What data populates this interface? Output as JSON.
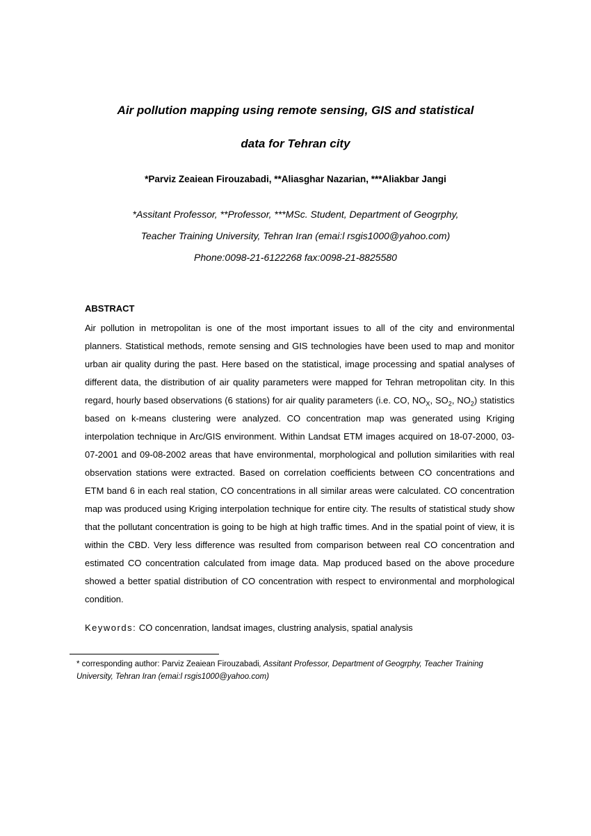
{
  "title_line1": "Air pollution mapping using remote sensing, GIS and statistical",
  "title_line2": "data for Tehran city",
  "authors": "*Parviz Zeaiean Firouzabadi, **Aliasghar Nazarian, ***Aliakbar Jangi",
  "affiliation_line1": "*Assitant Professor, **Professor, ***MSc. Student, Department of Geogrphy,",
  "affiliation_line2": "Teacher Training University, Tehran Iran (emai:l rsgis1000@yahoo.com)",
  "affiliation_line3": "Phone:0098-21-6122268  fax:0098-21-8825580",
  "abstract_heading": "ABSTRACT",
  "abstract_body": "Air pollution in metropolitan is one of the most important issues to all of the city and environmental planners. Statistical methods, remote sensing and GIS technologies have been used to map and monitor urban air quality during the past. Here based on the statistical, image processing and spatial analyses of different data, the distribution of air quality parameters were mapped for Tehran metropolitan city. In this regard, hourly based observations (6 stations) for air quality parameters (i.e. CO, NOX, SO2, NO2) statistics based on k-means clustering were analyzed.  CO concentration map was generated using Kriging interpolation technique in Arc/GIS environment.  Within Landsat ETM images acquired on 18-07-2000, 03-07-2001 and 09-08-2002 areas that have environmental, morphological and pollution similarities with real observation stations were extracted.  Based on correlation coefficients between CO concentrations and ETM band 6 in each real station, CO concentrations in all similar areas were calculated. CO concentration map was produced using Kriging interpolation technique for entire city. The results of statistical study show that the pollutant concentration is going to be high at high traffic times. And in the spatial point of view, it is within the CBD. Very less difference was resulted from comparison between real CO concentration and estimated CO concentration calculated from image data. Map produced based on the above procedure showed a better spatial distribution of CO concentration with respect to environmental and morphological condition.",
  "keywords_label": "Keywords:",
  "keywords_text": " CO concenration, landsat images, clustring analysis, spatial analysis",
  "footnote_prefix": "* corresponding author: Parviz Zeaiean Firouzabadi",
  "footnote_suffix": ", Assitant Professor, Department of Geogrphy, Teacher Training University, Tehran Iran (emai:l rsgis1000@yahoo.com)"
}
